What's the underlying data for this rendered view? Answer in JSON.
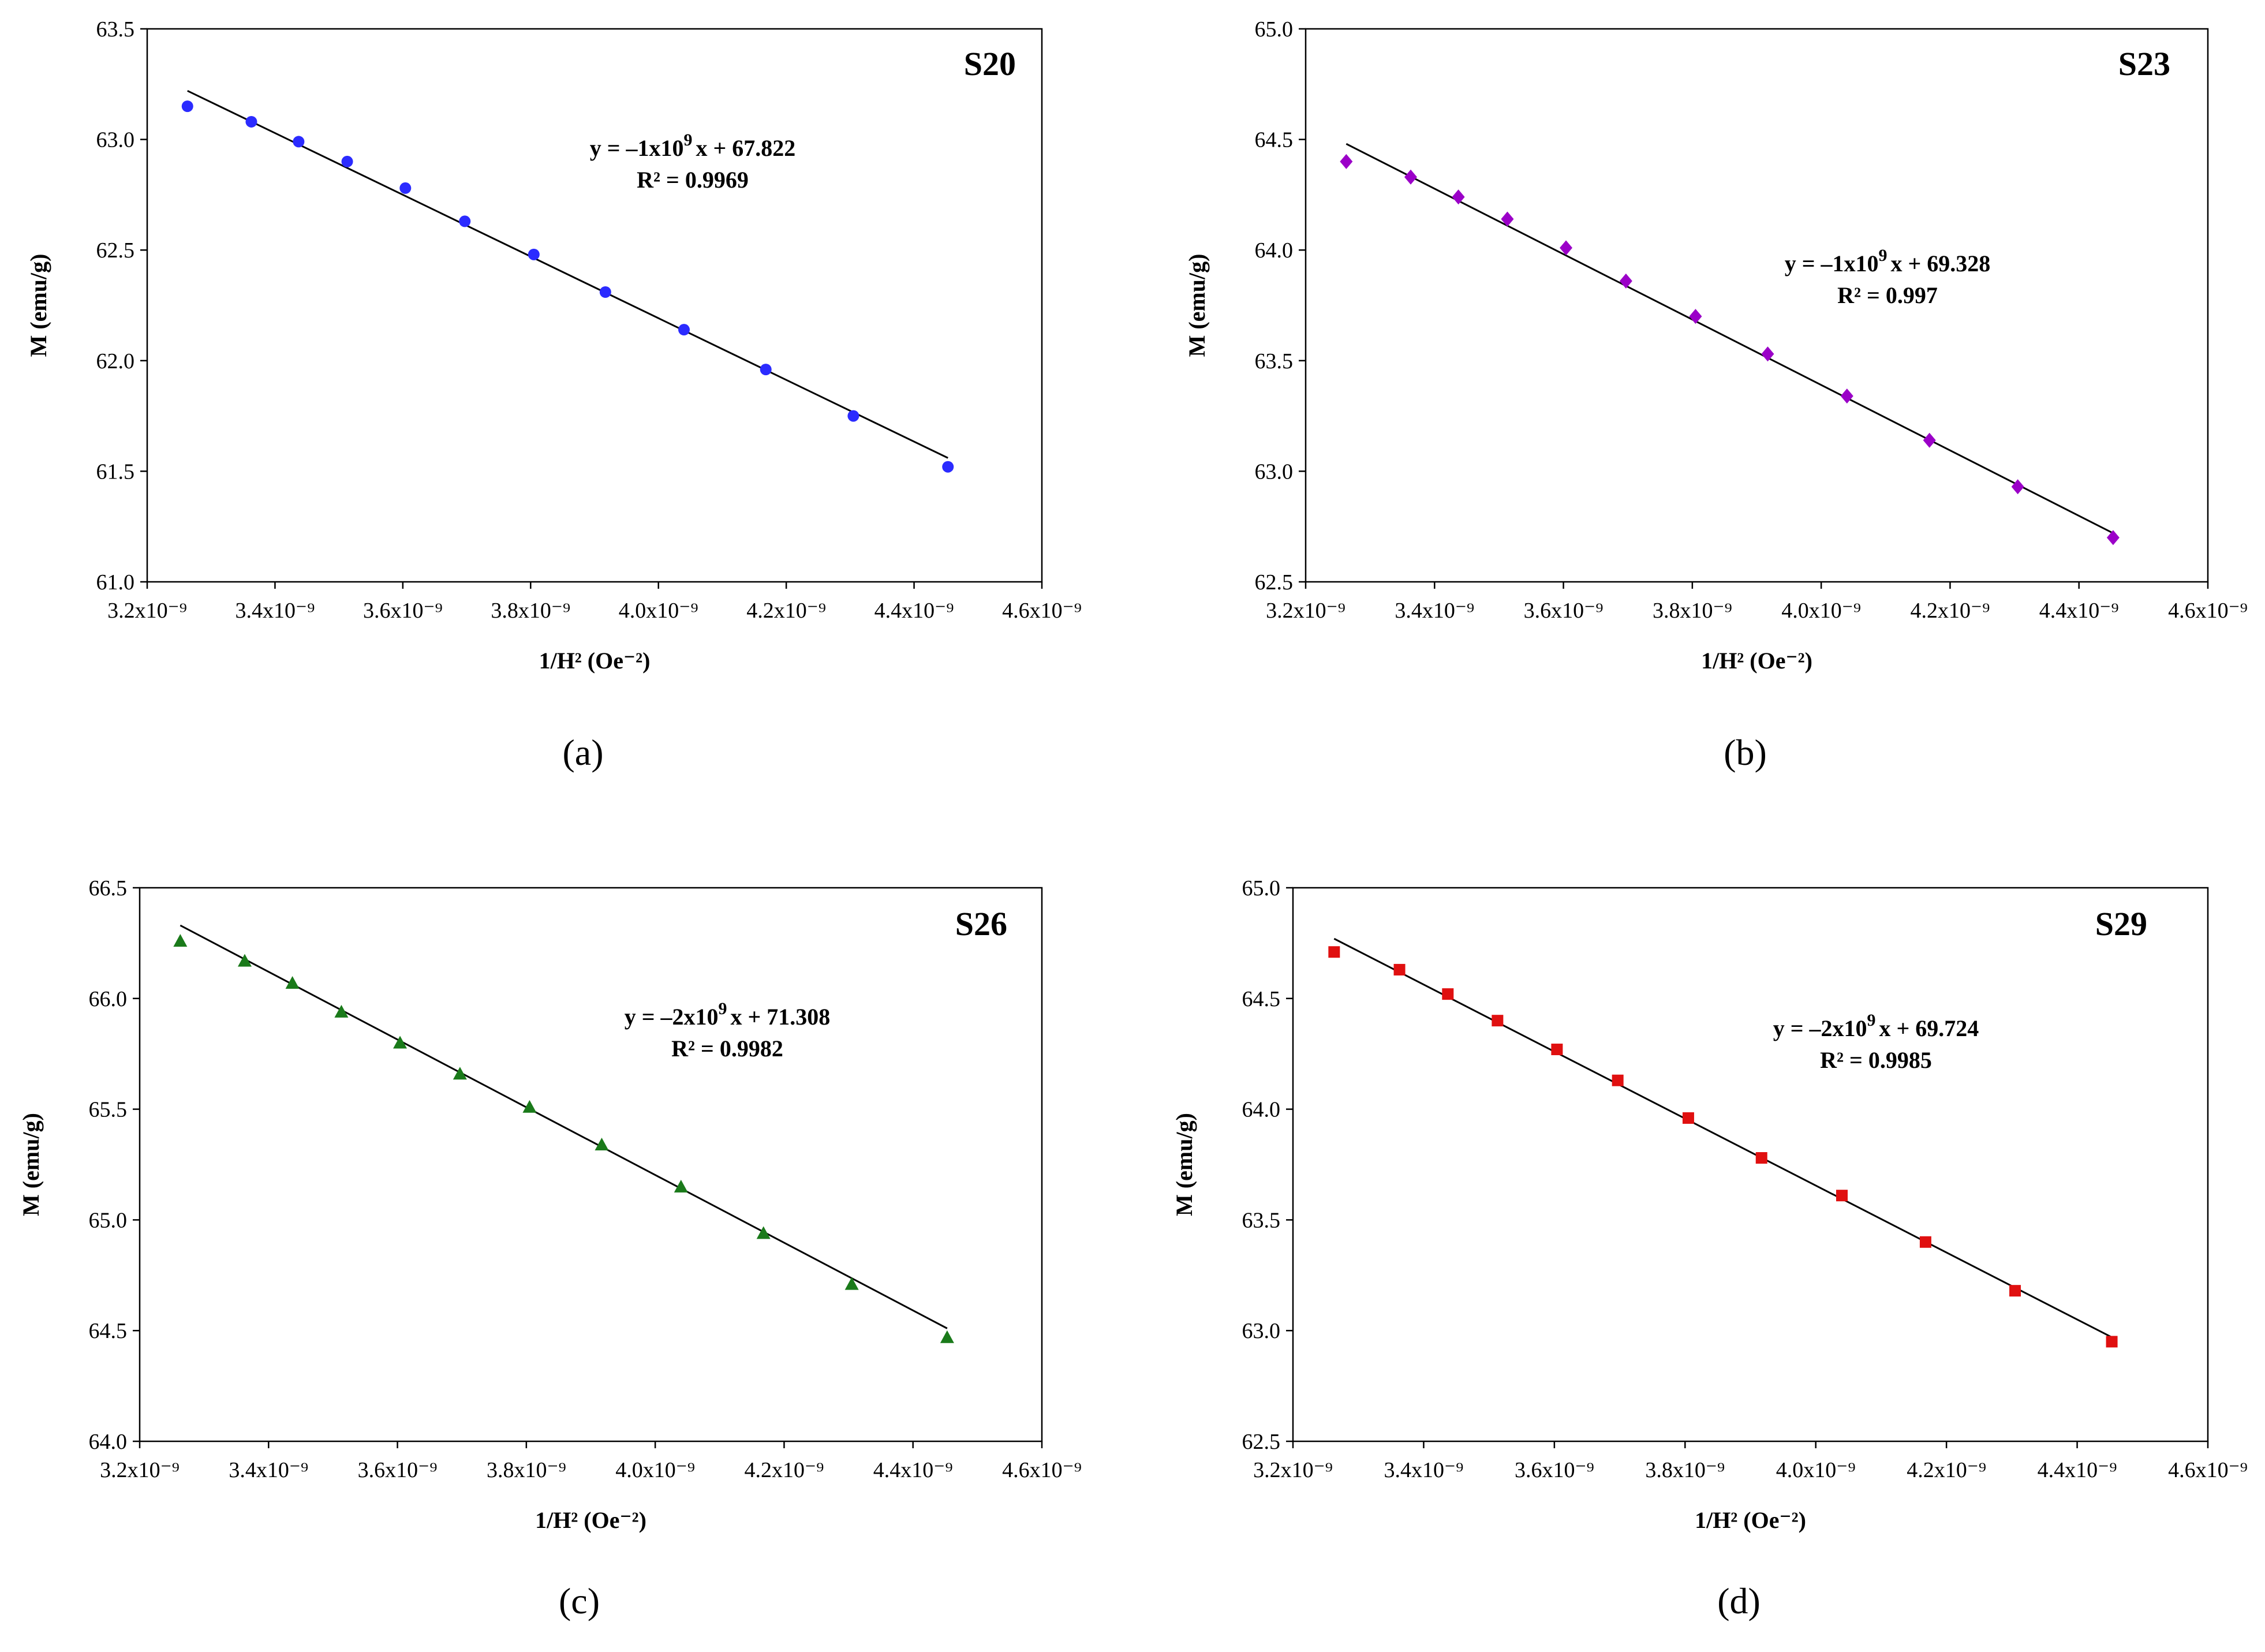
{
  "figure": {
    "panels": [
      "a",
      "b",
      "c",
      "d"
    ]
  },
  "chart_data": [
    {
      "type": "scatter",
      "panel_label": "(a)",
      "caption_letter": "a",
      "sample_label": "S20",
      "xlabel": "1/H² (Oe⁻²)",
      "ylabel": "M (emu/g)",
      "xlim": [
        3.2e-09,
        4.6e-09
      ],
      "ylim": [
        61.0,
        63.5
      ],
      "x_ticks": [
        3.2e-09,
        3.4e-09,
        3.6e-09,
        3.8e-09,
        4e-09,
        4.2e-09,
        4.4e-09,
        4.6e-09
      ],
      "x_tick_labels": [
        "3.2x10⁻⁹",
        "3.4x10⁻⁹",
        "3.6x10⁻⁹",
        "3.8x10⁻⁹",
        "4.0x10⁻⁹",
        "4.2x10⁻⁹",
        "4.4x10⁻⁹",
        "4.6x10⁻⁹"
      ],
      "y_ticks": [
        61.0,
        61.5,
        62.0,
        62.5,
        63.0,
        63.5
      ],
      "y_tick_labels": [
        "61.0",
        "61.5",
        "62.0",
        "62.5",
        "63.0",
        "63.5"
      ],
      "marker": "circle",
      "color": "#2b2bff",
      "x": [
        3.263e-09,
        3.363e-09,
        3.437e-09,
        3.513e-09,
        3.604e-09,
        3.697e-09,
        3.805e-09,
        3.917e-09,
        4.04e-09,
        4.168e-09,
        4.305e-09,
        4.453e-09
      ],
      "values": [
        63.15,
        63.08,
        62.99,
        62.9,
        62.78,
        62.63,
        62.48,
        62.31,
        62.14,
        61.96,
        61.75,
        61.52
      ],
      "fit_line": {
        "x": [
          3.263e-09,
          4.453e-09
        ],
        "y": [
          63.22,
          61.56
        ]
      },
      "equation_main": "y = –1x10",
      "equation_exp": "9",
      "equation_tail": "x + 67.822",
      "r_squared": "R² = 0.9969"
    },
    {
      "type": "scatter",
      "panel_label": "(b)",
      "caption_letter": "b",
      "sample_label": "S23",
      "xlabel": "1/H² (Oe⁻²)",
      "ylabel": "M (emu/g)",
      "xlim": [
        3.2e-09,
        4.6e-09
      ],
      "ylim": [
        62.5,
        65.0
      ],
      "x_ticks": [
        3.2e-09,
        3.4e-09,
        3.6e-09,
        3.8e-09,
        4e-09,
        4.2e-09,
        4.4e-09,
        4.6e-09
      ],
      "x_tick_labels": [
        "3.2x10⁻⁹",
        "3.4x10⁻⁹",
        "3.6x10⁻⁹",
        "3.8x10⁻⁹",
        "4.0x10⁻⁹",
        "4.2x10⁻⁹",
        "4.4x10⁻⁹",
        "4.6x10⁻⁹"
      ],
      "y_ticks": [
        62.5,
        63.0,
        63.5,
        64.0,
        64.5,
        65.0
      ],
      "y_tick_labels": [
        "62.5",
        "63.0",
        "63.5",
        "64.0",
        "64.5",
        "65.0"
      ],
      "marker": "diamond",
      "color": "#9b00c8",
      "x": [
        3.263e-09,
        3.363e-09,
        3.437e-09,
        3.513e-09,
        3.604e-09,
        3.697e-09,
        3.805e-09,
        3.917e-09,
        4.04e-09,
        4.168e-09,
        4.305e-09,
        4.453e-09
      ],
      "values": [
        64.4,
        64.33,
        64.24,
        64.14,
        64.01,
        63.86,
        63.7,
        63.53,
        63.34,
        63.14,
        62.93,
        62.7
      ],
      "fit_line": {
        "x": [
          3.263e-09,
          4.453e-09
        ],
        "y": [
          64.48,
          62.72
        ]
      },
      "equation_main": "y = –1x10",
      "equation_exp": "9",
      "equation_tail": "x + 69.328",
      "r_squared": "R² = 0.997"
    },
    {
      "type": "scatter",
      "panel_label": "(c)",
      "caption_letter": "c",
      "sample_label": "S26",
      "xlabel": "1/H² (Oe⁻²)",
      "ylabel": "M (emu/g)",
      "xlim": [
        3.2e-09,
        4.6e-09
      ],
      "ylim": [
        64.0,
        66.5
      ],
      "x_ticks": [
        3.2e-09,
        3.4e-09,
        3.6e-09,
        3.8e-09,
        4e-09,
        4.2e-09,
        4.4e-09,
        4.6e-09
      ],
      "x_tick_labels": [
        "3.2x10⁻⁹",
        "3.4x10⁻⁹",
        "3.6x10⁻⁹",
        "3.8x10⁻⁹",
        "4.0x10⁻⁹",
        "4.2x10⁻⁹",
        "4.4x10⁻⁹",
        "4.6x10⁻⁹"
      ],
      "y_ticks": [
        64.0,
        64.5,
        65.0,
        65.5,
        66.0,
        66.5
      ],
      "y_tick_labels": [
        "64.0",
        "64.5",
        "65.0",
        "65.5",
        "66.0",
        "66.5"
      ],
      "marker": "triangle",
      "color": "#1a7a1a",
      "x": [
        3.263e-09,
        3.363e-09,
        3.437e-09,
        3.513e-09,
        3.604e-09,
        3.697e-09,
        3.805e-09,
        3.917e-09,
        4.04e-09,
        4.168e-09,
        4.305e-09,
        4.453e-09
      ],
      "values": [
        66.26,
        66.17,
        66.07,
        65.94,
        65.8,
        65.66,
        65.51,
        65.34,
        65.15,
        64.94,
        64.71,
        64.47
      ],
      "fit_line": {
        "x": [
          3.263e-09,
          4.453e-09
        ],
        "y": [
          66.33,
          64.51
        ]
      },
      "equation_main": "y = –2x10",
      "equation_exp": "9",
      "equation_tail": "x + 71.308",
      "r_squared": "R² = 0.9982"
    },
    {
      "type": "scatter",
      "panel_label": "(d)",
      "caption_letter": "d",
      "sample_label": "S29",
      "xlabel": "1/H² (Oe⁻²)",
      "ylabel": "M (emu/g)",
      "xlim": [
        3.2e-09,
        4.6e-09
      ],
      "ylim": [
        62.5,
        65.0
      ],
      "x_ticks": [
        3.2e-09,
        3.4e-09,
        3.6e-09,
        3.8e-09,
        4e-09,
        4.2e-09,
        4.4e-09,
        4.6e-09
      ],
      "x_tick_labels": [
        "3.2x10⁻⁹",
        "3.4x10⁻⁹",
        "3.6x10⁻⁹",
        "3.8x10⁻⁹",
        "4.0x10⁻⁹",
        "4.2x10⁻⁹",
        "4.4x10⁻⁹",
        "4.6x10⁻⁹"
      ],
      "y_ticks": [
        62.5,
        63.0,
        63.5,
        64.0,
        64.5,
        65.0
      ],
      "y_tick_labels": [
        "62.5",
        "63.0",
        "63.5",
        "64.0",
        "64.5",
        "65.0"
      ],
      "marker": "square",
      "color": "#e01010",
      "x": [
        3.263e-09,
        3.363e-09,
        3.437e-09,
        3.513e-09,
        3.604e-09,
        3.697e-09,
        3.805e-09,
        3.917e-09,
        4.04e-09,
        4.168e-09,
        4.305e-09,
        4.453e-09
      ],
      "values": [
        64.71,
        64.63,
        64.52,
        64.4,
        64.27,
        64.13,
        63.96,
        63.78,
        63.61,
        63.4,
        63.18,
        62.95
      ],
      "fit_line": {
        "x": [
          3.263e-09,
          4.453e-09
        ],
        "y": [
          64.77,
          62.97
        ]
      },
      "equation_main": "y = –2x10",
      "equation_exp": "9",
      "equation_tail": "x + 69.724",
      "r_squared": "R² = 0.9985"
    }
  ]
}
